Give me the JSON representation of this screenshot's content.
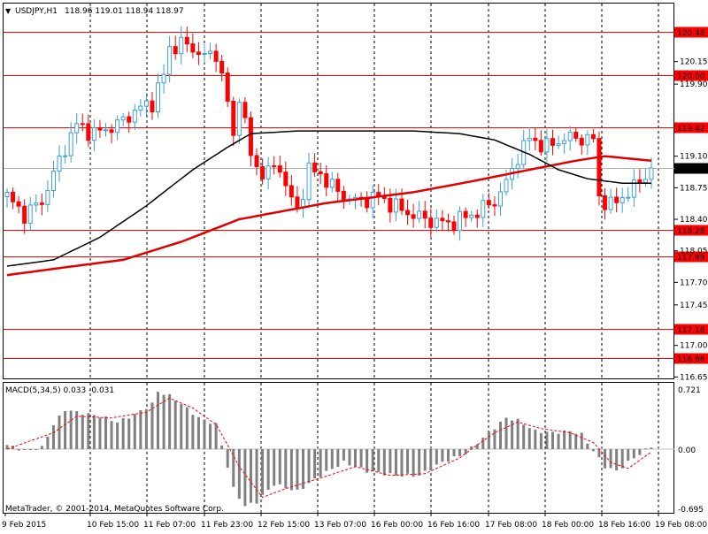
{
  "header": {
    "arrow": "▼",
    "symbol_text": "USDJPY,H1",
    "ohlc_text": "118.96 119.01 118.94 118.97"
  },
  "indicator": {
    "label": "MACD(5,34,5) 0.033 -0.031",
    "top_tick": "0.721",
    "mid_tick": "0.00",
    "bottom_tick": "-0.695"
  },
  "copyright": "MetaTrader, © 2001-2014, MetaQuotes Software Corp.",
  "colors": {
    "background": "#ffffff",
    "grid": "#000000",
    "bull_candle": "#3aa0d8",
    "bear_candle": "#ff0000",
    "ma_red": "#e00000",
    "ma_black": "#000000",
    "hline": "#ff0000",
    "current_price_bg": "#000000",
    "macd_hist": "#808080",
    "macd_signal": "#ff0000"
  },
  "chart_data": [
    {
      "type": "candlestick",
      "symbol": "USDJPY",
      "timeframe": "H1",
      "x_tick_labels": [
        "9 Feb 2015",
        "10 Feb 15:00",
        "11 Feb 07:00",
        "11 Feb 23:00",
        "12 Feb 15:00",
        "13 Feb 07:00",
        "16 Feb 00:00",
        "16 Feb 16:00",
        "17 Feb 08:00",
        "18 Feb 00:00",
        "18 Feb 16:00",
        "19 Feb 08:00"
      ],
      "y_tick_labels": [
        "120.15",
        "119.90",
        "119.10",
        "118.75",
        "118.40",
        "118.05",
        "117.70",
        "117.45",
        "117.00",
        "116.65"
      ],
      "ylim": [
        116.6,
        120.6
      ],
      "grid": true,
      "current_price": 118.97,
      "horizontal_levels": [
        120.48,
        120.0,
        119.42,
        118.28,
        117.99,
        117.18,
        116.86
      ],
      "close_path": [
        [
          0,
          118.65
        ],
        [
          3,
          118.45
        ],
        [
          6,
          118.6
        ],
        [
          10,
          119.2
        ],
        [
          12,
          119.45
        ],
        [
          15,
          119.35
        ],
        [
          19,
          119.45
        ],
        [
          22,
          119.6
        ],
        [
          25,
          119.7
        ],
        [
          27,
          120.0
        ],
        [
          28,
          120.3
        ],
        [
          30,
          120.35
        ],
        [
          32,
          120.3
        ],
        [
          34,
          120.2
        ],
        [
          36,
          120.25
        ],
        [
          38,
          119.7
        ],
        [
          39,
          119.3
        ],
        [
          40,
          119.8
        ],
        [
          42,
          119.1
        ],
        [
          44,
          118.9
        ],
        [
          47,
          119.0
        ],
        [
          48,
          118.75
        ],
        [
          50,
          118.5
        ],
        [
          52,
          118.95
        ],
        [
          54,
          118.9
        ],
        [
          57,
          118.7
        ],
        [
          60,
          118.6
        ],
        [
          64,
          118.65
        ],
        [
          68,
          118.5
        ],
        [
          72,
          118.4
        ],
        [
          76,
          118.35
        ],
        [
          80,
          118.45
        ],
        [
          84,
          118.6
        ],
        [
          86,
          118.8
        ],
        [
          88,
          119.1
        ],
        [
          90,
          119.3
        ],
        [
          93,
          119.2
        ],
        [
          96,
          119.3
        ],
        [
          99,
          119.3
        ],
        [
          101,
          119.28
        ],
        [
          102,
          118.65
        ],
        [
          104,
          118.55
        ],
        [
          106,
          118.65
        ],
        [
          108,
          118.75
        ],
        [
          111,
          118.97
        ]
      ],
      "series": [
        {
          "name": "MA red",
          "x": [
            0,
            8,
            20,
            30,
            40,
            55,
            70,
            80,
            90,
            98,
            103,
            111
          ],
          "values": [
            117.78,
            117.85,
            117.95,
            118.15,
            118.4,
            118.58,
            118.7,
            118.82,
            118.95,
            119.05,
            119.1,
            119.05
          ]
        },
        {
          "name": "MA black",
          "x": [
            0,
            8,
            16,
            24,
            32,
            38,
            42,
            50,
            60,
            70,
            78,
            84,
            90,
            95,
            100,
            106,
            111
          ],
          "values": [
            117.88,
            117.95,
            118.2,
            118.55,
            118.95,
            119.2,
            119.35,
            119.38,
            119.38,
            119.38,
            119.35,
            119.28,
            119.12,
            118.95,
            118.85,
            118.8,
            118.8
          ]
        }
      ]
    },
    {
      "type": "bar",
      "indicator": "MACD(5,34,5)",
      "main_value": 0.033,
      "signal_value": -0.031,
      "y_tick_labels": [
        "0.721",
        "0.00",
        "-0.695"
      ],
      "ylim": [
        -0.695,
        0.721
      ],
      "histogram_path": [
        [
          0,
          0.05
        ],
        [
          3,
          -0.02
        ],
        [
          6,
          0.02
        ],
        [
          8,
          0.3
        ],
        [
          10,
          0.48
        ],
        [
          12,
          0.45
        ],
        [
          16,
          0.4
        ],
        [
          19,
          0.33
        ],
        [
          22,
          0.42
        ],
        [
          25,
          0.55
        ],
        [
          26,
          0.7
        ],
        [
          28,
          0.65
        ],
        [
          30,
          0.55
        ],
        [
          33,
          0.38
        ],
        [
          36,
          0.3
        ],
        [
          37,
          0.05
        ],
        [
          39,
          -0.45
        ],
        [
          41,
          -0.65
        ],
        [
          43,
          -0.6
        ],
        [
          46,
          -0.4
        ],
        [
          50,
          -0.48
        ],
        [
          54,
          -0.3
        ],
        [
          58,
          -0.15
        ],
        [
          62,
          -0.25
        ],
        [
          67,
          -0.3
        ],
        [
          71,
          -0.3
        ],
        [
          75,
          -0.15
        ],
        [
          79,
          -0.05
        ],
        [
          83,
          0.2
        ],
        [
          86,
          0.38
        ],
        [
          88,
          0.35
        ],
        [
          91,
          0.22
        ],
        [
          94,
          0.2
        ],
        [
          97,
          0.22
        ],
        [
          99,
          0.18
        ],
        [
          101,
          -0.02
        ],
        [
          103,
          -0.2
        ],
        [
          105,
          -0.25
        ],
        [
          108,
          -0.1
        ],
        [
          111,
          0.033
        ]
      ],
      "signal_path": [
        [
          0,
          0.0
        ],
        [
          8,
          0.2
        ],
        [
          12,
          0.4
        ],
        [
          18,
          0.38
        ],
        [
          24,
          0.45
        ],
        [
          28,
          0.62
        ],
        [
          32,
          0.5
        ],
        [
          36,
          0.3
        ],
        [
          40,
          -0.2
        ],
        [
          44,
          -0.55
        ],
        [
          48,
          -0.45
        ],
        [
          54,
          -0.33
        ],
        [
          60,
          -0.2
        ],
        [
          66,
          -0.3
        ],
        [
          72,
          -0.28
        ],
        [
          78,
          -0.1
        ],
        [
          84,
          0.2
        ],
        [
          88,
          0.33
        ],
        [
          92,
          0.25
        ],
        [
          97,
          0.2
        ],
        [
          101,
          0.08
        ],
        [
          104,
          -0.15
        ],
        [
          107,
          -0.22
        ],
        [
          111,
          -0.031
        ]
      ]
    }
  ]
}
